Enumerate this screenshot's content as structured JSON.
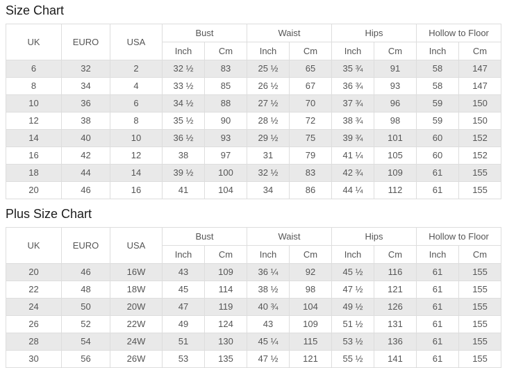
{
  "chart_data": [
    {
      "type": "table",
      "title": "Size Chart",
      "header": {
        "size_cols": [
          "UK",
          "EURO",
          "USA"
        ],
        "groups": [
          "Bust",
          "Waist",
          "Hips",
          "Hollow to Floor"
        ],
        "units": [
          "Inch",
          "Cm"
        ]
      },
      "columns": [
        "UK",
        "EURO",
        "USA",
        "Bust Inch",
        "Bust Cm",
        "Waist Inch",
        "Waist Cm",
        "Hips Inch",
        "Hips Cm",
        "Hollow to Floor Inch",
        "Hollow to Floor Cm"
      ],
      "rows": [
        [
          "6",
          "32",
          "2",
          "32 ½",
          "83",
          "25 ½",
          "65",
          "35 ¾",
          "91",
          "58",
          "147"
        ],
        [
          "8",
          "34",
          "4",
          "33 ½",
          "85",
          "26 ½",
          "67",
          "36 ¾",
          "93",
          "58",
          "147"
        ],
        [
          "10",
          "36",
          "6",
          "34 ½",
          "88",
          "27 ½",
          "70",
          "37 ¾",
          "96",
          "59",
          "150"
        ],
        [
          "12",
          "38",
          "8",
          "35 ½",
          "90",
          "28 ½",
          "72",
          "38 ¾",
          "98",
          "59",
          "150"
        ],
        [
          "14",
          "40",
          "10",
          "36 ½",
          "93",
          "29 ½",
          "75",
          "39 ¾",
          "101",
          "60",
          "152"
        ],
        [
          "16",
          "42",
          "12",
          "38",
          "97",
          "31",
          "79",
          "41 ¼",
          "105",
          "60",
          "152"
        ],
        [
          "18",
          "44",
          "14",
          "39 ½",
          "100",
          "32 ½",
          "83",
          "42 ¾",
          "109",
          "61",
          "155"
        ],
        [
          "20",
          "46",
          "16",
          "41",
          "104",
          "34",
          "86",
          "44 ¼",
          "112",
          "61",
          "155"
        ]
      ]
    },
    {
      "type": "table",
      "title": "Plus Size Chart",
      "header": {
        "size_cols": [
          "UK",
          "EURO",
          "USA"
        ],
        "groups": [
          "Bust",
          "Waist",
          "Hips",
          "Hollow to Floor"
        ],
        "units": [
          "Inch",
          "Cm"
        ]
      },
      "columns": [
        "UK",
        "EURO",
        "USA",
        "Bust Inch",
        "Bust Cm",
        "Waist Inch",
        "Waist Cm",
        "Hips Inch",
        "Hips Cm",
        "Hollow to Floor Inch",
        "Hollow to Floor Cm"
      ],
      "rows": [
        [
          "20",
          "46",
          "16W",
          "43",
          "109",
          "36 ¼",
          "92",
          "45 ½",
          "116",
          "61",
          "155"
        ],
        [
          "22",
          "48",
          "18W",
          "45",
          "114",
          "38 ½",
          "98",
          "47 ½",
          "121",
          "61",
          "155"
        ],
        [
          "24",
          "50",
          "20W",
          "47",
          "119",
          "40 ¾",
          "104",
          "49 ½",
          "126",
          "61",
          "155"
        ],
        [
          "26",
          "52",
          "22W",
          "49",
          "124",
          "43",
          "109",
          "51 ½",
          "131",
          "61",
          "155"
        ],
        [
          "28",
          "54",
          "24W",
          "51",
          "130",
          "45 ¼",
          "115",
          "53 ½",
          "136",
          "61",
          "155"
        ],
        [
          "30",
          "56",
          "26W",
          "53",
          "135",
          "47 ½",
          "121",
          "55 ½",
          "141",
          "61",
          "155"
        ]
      ]
    }
  ],
  "colors": {
    "row_stripe": "#e9e9e9",
    "table_border": "#dddddd",
    "cell_text": "#555555",
    "title_text": "#1b1b1b"
  }
}
